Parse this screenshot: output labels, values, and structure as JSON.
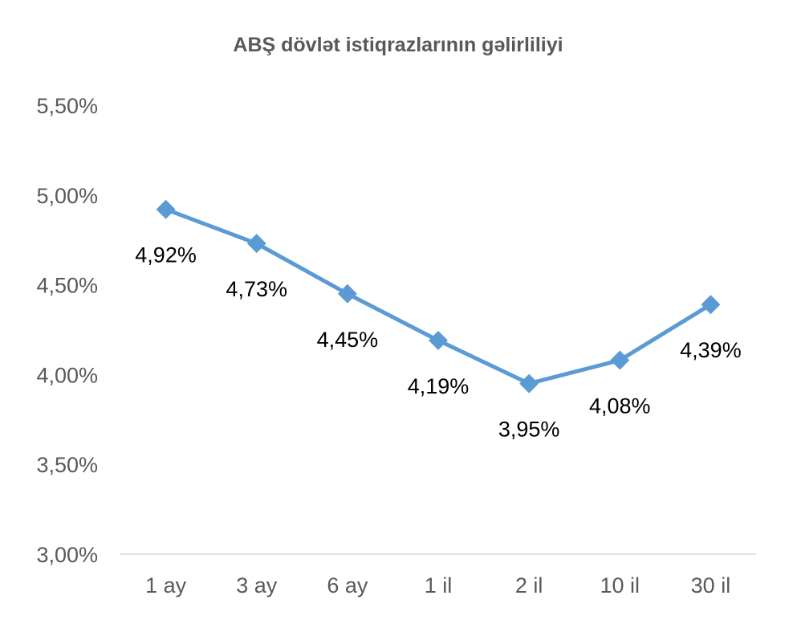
{
  "chart_data": {
    "type": "line",
    "title": "ABŞ dövlət istiqrazlarının gəlirliliyi",
    "xlabel": "",
    "ylabel": "",
    "categories": [
      "1 ay",
      "3 ay",
      "6 ay",
      "1 il",
      "2 il",
      "10 il",
      "30 il"
    ],
    "series": [
      {
        "values": [
          4.92,
          4.73,
          4.45,
          4.19,
          3.95,
          4.08,
          4.39
        ],
        "labels": [
          "4,92%",
          "4,73%",
          "4,45%",
          "4,19%",
          "3,95%",
          "4,08%",
          "4,39%"
        ]
      }
    ],
    "ylim": [
      3.0,
      5.5
    ],
    "yticks": [
      3.0,
      3.5,
      4.0,
      4.5,
      5.0,
      5.5
    ],
    "ytick_labels": [
      "3,00%",
      "3,50%",
      "4,00%",
      "4,50%",
      "5,00%",
      "5,50%"
    ],
    "grid": false,
    "legend": "none",
    "colors": {
      "line": "#5B9BD5",
      "axis": "#D9D9D9",
      "text": "#595959"
    }
  }
}
